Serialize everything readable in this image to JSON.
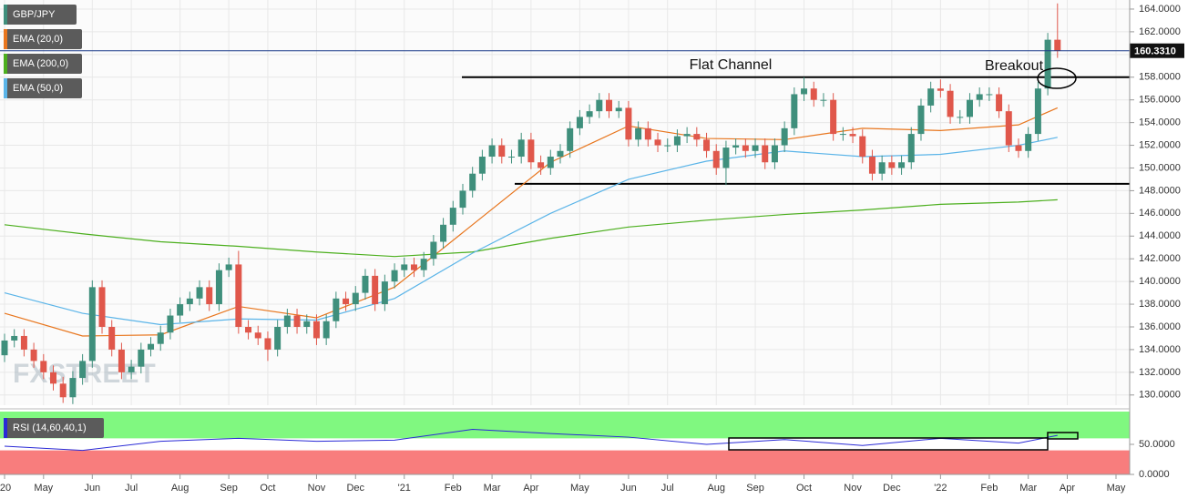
{
  "chart_data": [
    {
      "type": "candlestick",
      "title": "GBP/JPY",
      "watermark": "FXSTREET",
      "categories": [
        "'20",
        null,
        null,
        null,
        "May",
        null,
        null,
        null,
        null,
        "Jun",
        null,
        null,
        null,
        "Jul",
        null,
        null,
        null,
        null,
        "Aug",
        null,
        null,
        null,
        null,
        "Sep",
        null,
        null,
        null,
        "Oct",
        null,
        null,
        null,
        null,
        "Nov",
        null,
        null,
        null,
        "Dec",
        null,
        null,
        null,
        null,
        "'21",
        null,
        null,
        null,
        null,
        "Feb",
        null,
        null,
        null,
        "Mar",
        null,
        null,
        null,
        "Apr",
        null,
        null,
        null,
        null,
        "May",
        null,
        null,
        null,
        null,
        "Jun",
        null,
        null,
        null,
        "Jul",
        null,
        null,
        null,
        null,
        "Aug",
        null,
        null,
        null,
        "Sep",
        null,
        null,
        null,
        null,
        "Oct",
        null,
        null,
        null,
        null,
        "Nov",
        null,
        null,
        null,
        "Dec",
        null,
        null,
        null,
        null,
        "'22",
        null,
        null,
        null,
        null,
        "Feb",
        null,
        null,
        null,
        "Mar",
        null,
        null,
        null,
        "Apr",
        null,
        null,
        null,
        null,
        "May"
      ],
      "open": [
        133.5,
        134.8,
        135.2,
        134.0,
        133.0,
        132.0,
        131.0,
        129.8,
        131.5,
        133.0,
        139.5,
        136.0,
        134.0,
        132.0,
        132.5,
        134.0,
        134.5,
        135.5,
        137.0,
        138.0,
        138.5,
        139.5,
        138.0,
        141.0,
        141.5,
        136.0,
        135.5,
        135.0,
        134.0,
        136.0,
        137.0,
        136.0,
        136.5,
        135.0,
        136.5,
        138.5,
        138.0,
        139.0,
        140.5,
        138.0,
        140.0,
        141.0,
        141.5,
        141.0,
        142.0,
        143.5,
        145.0,
        146.5,
        148.0,
        149.5,
        151.0,
        152.0,
        151.0,
        151.0,
        152.5,
        150.5,
        150.0,
        151.0,
        151.5,
        153.5,
        154.5,
        155.0,
        156.0,
        155.0,
        155.3,
        152.5,
        153.5,
        152.5,
        152.0,
        152.0,
        152.8,
        153.0,
        152.5,
        151.5,
        150.0,
        151.8,
        152.0,
        151.5,
        152.0,
        150.5,
        152.0,
        153.5,
        156.5,
        157.0,
        156.0,
        156.0,
        153.0,
        153.0,
        152.8,
        151.0,
        149.5,
        150.5,
        150.0,
        150.5,
        153.0,
        155.5,
        157.0,
        156.8,
        154.5,
        154.5,
        156.0,
        156.5,
        156.5,
        155.0,
        152.0,
        151.5,
        153.0,
        157.0,
        161.3,
        null,
        null,
        null,
        null,
        null,
        null
      ],
      "high": [
        135.4,
        135.8,
        135.8,
        134.6,
        133.6,
        132.6,
        131.6,
        132.1,
        133.6,
        140.1,
        140.1,
        136.6,
        134.6,
        133.1,
        134.6,
        135.1,
        136.1,
        137.6,
        138.6,
        139.1,
        140.1,
        140.1,
        141.6,
        142.1,
        142.7,
        136.6,
        136.1,
        135.6,
        136.6,
        137.6,
        137.6,
        137.1,
        137.1,
        137.1,
        139.1,
        139.1,
        139.6,
        141.1,
        141.1,
        140.6,
        141.6,
        142.1,
        142.1,
        142.6,
        144.1,
        145.6,
        147.1,
        148.6,
        150.1,
        151.6,
        152.6,
        152.6,
        151.6,
        153.1,
        153.1,
        151.1,
        151.6,
        152.1,
        154.1,
        155.1,
        155.6,
        156.6,
        156.6,
        155.9,
        155.9,
        154.1,
        154.1,
        153.1,
        152.6,
        153.4,
        153.6,
        153.6,
        153.1,
        152.1,
        152.4,
        152.6,
        152.6,
        152.6,
        152.6,
        152.6,
        154.1,
        157.1,
        158.0,
        157.6,
        156.6,
        156.6,
        153.6,
        153.6,
        153.4,
        151.6,
        151.1,
        151.1,
        151.1,
        153.6,
        156.1,
        157.6,
        157.8,
        157.4,
        155.1,
        156.6,
        157.1,
        157.1,
        157.1,
        155.6,
        152.6,
        153.6,
        157.6,
        161.9,
        164.5,
        null,
        null,
        null,
        null,
        null,
        null
      ],
      "low": [
        132.9,
        134.2,
        133.4,
        132.4,
        131.4,
        130.4,
        129.3,
        129.2,
        130.9,
        132.4,
        135.4,
        133.4,
        131.4,
        131.4,
        131.9,
        133.4,
        133.9,
        134.9,
        136.4,
        137.4,
        137.9,
        137.4,
        137.4,
        140.4,
        135.4,
        134.9,
        134.4,
        133.0,
        133.4,
        135.4,
        135.4,
        135.4,
        134.4,
        134.4,
        135.9,
        137.4,
        137.4,
        138.4,
        137.4,
        137.4,
        139.4,
        140.4,
        140.4,
        140.4,
        141.4,
        142.9,
        144.4,
        145.9,
        147.4,
        148.9,
        150.4,
        150.4,
        150.4,
        150.4,
        149.9,
        149.4,
        149.4,
        150.4,
        150.9,
        152.9,
        153.9,
        154.4,
        154.4,
        154.4,
        151.9,
        151.9,
        151.9,
        151.4,
        151.4,
        151.4,
        152.2,
        151.9,
        150.9,
        149.4,
        148.5,
        151.2,
        150.9,
        150.9,
        149.9,
        149.9,
        151.4,
        152.9,
        155.9,
        155.4,
        155.4,
        152.4,
        152.4,
        152.2,
        150.4,
        148.9,
        148.9,
        149.4,
        149.4,
        149.9,
        152.4,
        154.9,
        156.2,
        153.9,
        153.9,
        153.9,
        155.4,
        155.9,
        154.4,
        151.4,
        150.9,
        150.9,
        152.4,
        156.4,
        159.7,
        null,
        null,
        null,
        null,
        null,
        null
      ],
      "close": [
        134.8,
        135.2,
        134.0,
        133.0,
        132.0,
        131.0,
        129.8,
        131.5,
        133.0,
        139.5,
        136.0,
        134.0,
        132.0,
        132.5,
        134.0,
        134.5,
        135.5,
        137.0,
        138.0,
        138.5,
        139.5,
        138.0,
        141.0,
        141.5,
        136.0,
        135.5,
        135.0,
        134.0,
        136.0,
        137.0,
        136.0,
        136.5,
        135.0,
        136.5,
        138.5,
        138.0,
        139.0,
        140.5,
        138.0,
        140.0,
        141.0,
        141.5,
        141.0,
        142.0,
        143.5,
        145.0,
        146.5,
        148.0,
        149.5,
        151.0,
        152.0,
        151.0,
        151.0,
        152.5,
        150.5,
        150.0,
        151.0,
        151.5,
        153.5,
        154.5,
        155.0,
        156.0,
        155.0,
        155.3,
        152.5,
        153.5,
        152.5,
        152.0,
        152.0,
        152.8,
        153.0,
        152.5,
        151.5,
        150.0,
        151.8,
        152.0,
        151.5,
        152.0,
        150.5,
        152.0,
        153.5,
        156.5,
        157.0,
        156.0,
        156.0,
        153.0,
        153.0,
        152.8,
        151.0,
        149.5,
        150.5,
        150.0,
        150.5,
        153.0,
        155.5,
        157.0,
        156.8,
        154.5,
        154.5,
        156.0,
        156.5,
        156.5,
        155.0,
        152.0,
        151.5,
        153.0,
        157.0,
        161.3,
        160.331,
        null,
        null,
        null,
        null,
        null,
        null
      ],
      "up_color": "#3f8f7c",
      "down_color": "#e0574b",
      "x": [
        0,
        8,
        16,
        24,
        32,
        40,
        48,
        56,
        64,
        72,
        80,
        88,
        96,
        104,
        108
      ],
      "series": [
        {
          "name": "EMA (20,0)",
          "color": "#e8761e",
          "values": [
            137.2,
            135.2,
            135.3,
            137.8,
            136.8,
            139.5,
            145,
            150.5,
            153.7,
            152.6,
            152.5,
            153.5,
            153.3,
            153.8,
            155.3
          ]
        },
        {
          "name": "EMA (200,0)",
          "color": "#4caf1e",
          "values": [
            145,
            144.2,
            143.5,
            143.1,
            142.6,
            142.2,
            142.6,
            143.8,
            144.8,
            145.4,
            145.9,
            146.3,
            146.8,
            147.0,
            147.2
          ]
        },
        {
          "name": "EMA (50,0)",
          "color": "#5ab4e8",
          "values": [
            139,
            137.2,
            136.2,
            136.7,
            136.6,
            138.5,
            142.5,
            146,
            149,
            150.6,
            151.5,
            151,
            151.2,
            152,
            152.7
          ]
        }
      ],
      "last_price": {
        "value": 160.331,
        "label": "160.3310"
      },
      "levels": [
        158.0,
        148.6
      ],
      "annotations": [
        "Flat Channel",
        "Breakout"
      ],
      "ylim": [
        129.1,
        164.8
      ],
      "yticks": [
        {
          "value": 130,
          "label": "130.0000"
        },
        {
          "value": 132,
          "label": "132.0000"
        },
        {
          "value": 134,
          "label": "134.0000"
        },
        {
          "value": 136,
          "label": "136.0000"
        },
        {
          "value": 138,
          "label": "138.0000"
        },
        {
          "value": 140,
          "label": "140.0000"
        },
        {
          "value": 142,
          "label": "142.0000"
        },
        {
          "value": 144,
          "label": "144.0000"
        },
        {
          "value": 146,
          "label": "146.0000"
        },
        {
          "value": 148,
          "label": "148.0000"
        },
        {
          "value": 150,
          "label": "150.0000"
        },
        {
          "value": 152,
          "label": "152.0000"
        },
        {
          "value": 154,
          "label": "154.0000"
        },
        {
          "value": 156,
          "label": "156.0000"
        },
        {
          "value": 158,
          "label": "158.0000"
        },
        {
          "value": 160,
          "label": "160.0000"
        },
        {
          "value": 162,
          "label": "162.0000"
        },
        {
          "value": 164,
          "label": "164.0000"
        }
      ],
      "grid": true
    },
    {
      "type": "line",
      "title": "RSI (14,60,40,1)",
      "x": [
        0,
        8,
        16,
        24,
        32,
        40,
        48,
        56,
        64,
        72,
        80,
        88,
        96,
        104,
        108
      ],
      "values": [
        47,
        40,
        55,
        60,
        55,
        57,
        75,
        68,
        62,
        50,
        58,
        48,
        60,
        52,
        65
      ],
      "color": "#2a2ad6",
      "upper": 60,
      "lower": 40,
      "upper_color": "#80f880",
      "lower_color": "#f87d7d",
      "ylim": [
        0,
        104.5
      ],
      "yticks": [
        {
          "value": 50,
          "label": "50.0000"
        },
        {
          "value": 0,
          "label": "0.0000"
        }
      ]
    }
  ]
}
